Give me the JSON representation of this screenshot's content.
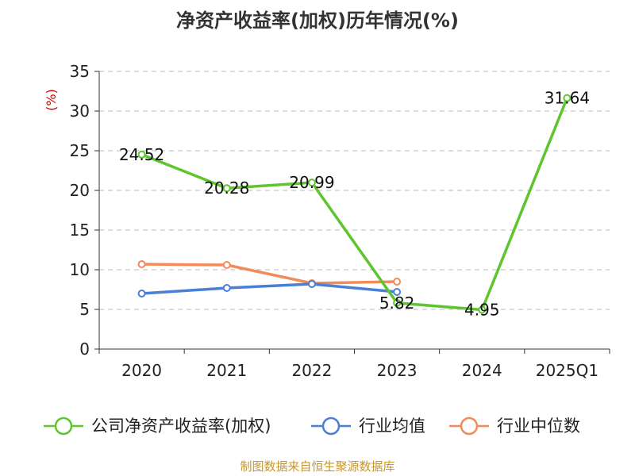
{
  "title": "净资产收益率(加权)历年情况(%)",
  "footer": "制图数据来自恒生聚源数据库",
  "colors": {
    "series_company": "#5ec52e",
    "series_avg": "#4a7fd6",
    "series_median": "#f28a5a",
    "ylabel": "#cc0000",
    "footer": "#c8962d",
    "grid": "#bbbbbb",
    "axis": "#333333"
  },
  "chart_data": {
    "type": "line",
    "title": "净资产收益率(加权)历年情况(%)",
    "xlabel": "",
    "ylabel": "(%)",
    "ylim": [
      0,
      35
    ],
    "yticks": [
      0,
      5,
      10,
      15,
      20,
      25,
      30,
      35
    ],
    "grid": true,
    "legend_position": "bottom",
    "categories": [
      "2020",
      "2021",
      "2022",
      "2023",
      "2024",
      "2025Q1"
    ],
    "series": [
      {
        "name": "公司净资产收益率(加权)",
        "values": [
          24.52,
          20.28,
          20.99,
          5.82,
          4.95,
          31.64
        ],
        "labels": [
          "24.52",
          "20.28",
          "20.99",
          "5.82",
          "4.95",
          "31.64"
        ]
      },
      {
        "name": "行业均值",
        "values": [
          7.0,
          7.7,
          8.2,
          7.2,
          null,
          null
        ]
      },
      {
        "name": "行业中位数",
        "values": [
          10.7,
          10.6,
          8.3,
          8.5,
          null,
          null
        ]
      }
    ]
  }
}
